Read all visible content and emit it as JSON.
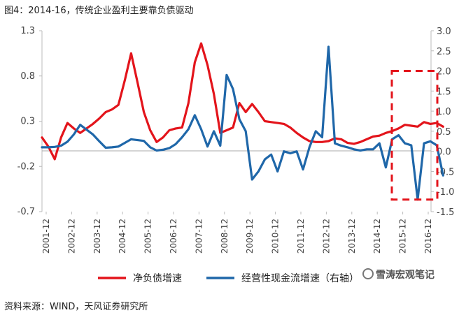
{
  "title": "图4：2014-16，传统企业盈利主要靠负债驱动",
  "source": "资料来源：WIND，天风证券研究所",
  "watermark": "雪涛宏观笔记",
  "chart_data": {
    "type": "line",
    "x_ticks": [
      "2001-12",
      "2002-12",
      "2003-12",
      "2004-12",
      "2005-12",
      "2006-12",
      "2007-12",
      "2008-12",
      "2009-12",
      "2010-12",
      "2011-12",
      "2012-12",
      "2013-12",
      "2014-12",
      "2015-12",
      "2016-12"
    ],
    "left_axis": {
      "ticks": [
        1.3,
        0.8,
        0.3,
        -0.2,
        -0.7
      ],
      "ylim": [
        -0.7,
        1.3
      ]
    },
    "right_axis": {
      "ticks": [
        3.0,
        2.5,
        2.0,
        1.5,
        1.0,
        0.5,
        0.0,
        -0.5,
        -1.0,
        -1.5
      ],
      "ylim": [
        -1.5,
        3.0
      ]
    },
    "series": [
      {
        "name": "净负债增速",
        "axis": "left",
        "color": "#e3141b",
        "values": [
          0.12,
          0.02,
          -0.12,
          0.12,
          0.28,
          0.22,
          0.17,
          0.22,
          0.27,
          0.33,
          0.4,
          0.43,
          0.48,
          0.75,
          1.05,
          0.73,
          0.4,
          0.2,
          0.07,
          0.12,
          0.2,
          0.22,
          0.23,
          0.5,
          0.95,
          1.16,
          0.92,
          0.6,
          0.17,
          0.2,
          0.23,
          0.5,
          0.4,
          0.49,
          0.4,
          0.3,
          0.29,
          0.28,
          0.27,
          0.23,
          0.17,
          0.12,
          0.08,
          0.07,
          0.07,
          0.08,
          0.11,
          0.1,
          0.06,
          0.05,
          0.07,
          0.1,
          0.13,
          0.14,
          0.17,
          0.19,
          0.22,
          0.26,
          0.25,
          0.24,
          0.29,
          0.27,
          0.28,
          0.24
        ]
      },
      {
        "name": "经营性现金流增速（右轴）",
        "axis": "right",
        "color": "#1f67a9",
        "values": [
          0.1,
          0.1,
          0.11,
          0.14,
          0.24,
          0.42,
          0.66,
          0.54,
          0.42,
          0.25,
          0.09,
          0.1,
          0.12,
          0.21,
          0.3,
          0.28,
          0.26,
          0.1,
          0.02,
          0.04,
          0.08,
          0.18,
          0.35,
          0.55,
          0.9,
          0.55,
          0.12,
          0.5,
          0.14,
          1.9,
          1.55,
          0.8,
          0.5,
          -0.7,
          -0.5,
          -0.2,
          -0.08,
          -0.5,
          0.0,
          -0.05,
          0.0,
          -0.45,
          0.1,
          0.5,
          0.35,
          2.6,
          0.2,
          0.14,
          0.1,
          0.05,
          0.02,
          0.05,
          0.05,
          0.2,
          -0.4,
          0.3,
          0.4,
          0.2,
          0.15,
          -1.2,
          0.2,
          0.25,
          0.15,
          -0.6
        ]
      }
    ],
    "annotation": {
      "shape": "dashed-rectangle",
      "color": "#e3141b",
      "x_range": [
        "2015-06",
        "2016-12"
      ],
      "y_range_right": [
        -1.2,
        2.0
      ]
    }
  }
}
